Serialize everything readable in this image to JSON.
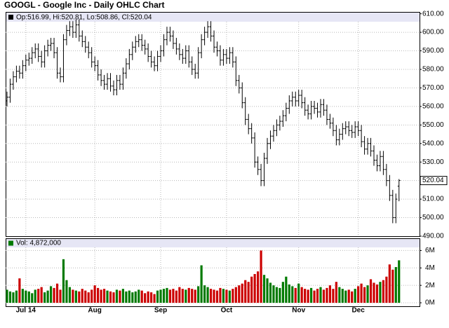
{
  "chart_data": {
    "type": "ohlc",
    "title": "GOOGL - Google Inc - Daily OHLC Chart",
    "legend": "Op:516.99, Hi:520.81, Lo:508.86, Cl:520.04",
    "color": "#000000",
    "grid": true,
    "show_last": true,
    "categories": [
      null,
      null,
      null,
      null,
      null,
      null,
      "Jul 14",
      null,
      null,
      null,
      null,
      null,
      null,
      null,
      null,
      null,
      null,
      null,
      null,
      null,
      null,
      null,
      null,
      null,
      null,
      null,
      null,
      null,
      "Aug",
      null,
      null,
      null,
      null,
      null,
      null,
      null,
      null,
      null,
      null,
      null,
      null,
      null,
      null,
      null,
      null,
      null,
      null,
      null,
      null,
      "Sep",
      null,
      null,
      null,
      null,
      null,
      null,
      null,
      null,
      null,
      null,
      null,
      null,
      null,
      null,
      null,
      null,
      null,
      null,
      null,
      null,
      "Oct",
      null,
      null,
      null,
      null,
      null,
      null,
      null,
      null,
      null,
      null,
      null,
      null,
      null,
      null,
      null,
      null,
      null,
      null,
      null,
      null,
      null,
      null,
      "Nov",
      null,
      null,
      null,
      null,
      null,
      null,
      null,
      null,
      null,
      null,
      null,
      null,
      null,
      null,
      null,
      null,
      null,
      null,
      "Dec",
      null,
      null,
      null,
      null,
      null,
      null,
      null,
      null,
      null,
      null,
      null,
      null,
      null
    ],
    "open": [
      563,
      565,
      572,
      576,
      579,
      578,
      582,
      585,
      586,
      589,
      591,
      587,
      584,
      590,
      593,
      594,
      589,
      578,
      576,
      596,
      601,
      603,
      600,
      604,
      598,
      595,
      592,
      589,
      584,
      582,
      577,
      574,
      572,
      575,
      571,
      569,
      574,
      572,
      578,
      583,
      588,
      592,
      595,
      596,
      593,
      591,
      587,
      584,
      582,
      587,
      590,
      596,
      600,
      598,
      594,
      591,
      588,
      586,
      590,
      584,
      580,
      578,
      589,
      596,
      600,
      603,
      598,
      592,
      590,
      585,
      588,
      586,
      589,
      584,
      574,
      570,
      562,
      553,
      548,
      543,
      530,
      526,
      520,
      532,
      540,
      544,
      547,
      550,
      552,
      555,
      559,
      563,
      565,
      563,
      566,
      562,
      558,
      556,
      560,
      559,
      557,
      561,
      558,
      553,
      551,
      547,
      542,
      545,
      548,
      549,
      547,
      546,
      549,
      547,
      541,
      537,
      540,
      536,
      531,
      528,
      533,
      526,
      520,
      512,
      500,
      516.99
    ],
    "high": [
      568,
      575,
      579,
      582,
      582,
      585,
      588,
      589,
      592,
      594,
      594,
      590,
      593,
      596,
      597,
      597,
      592,
      581,
      599,
      604,
      606,
      606,
      607,
      607,
      601,
      598,
      595,
      592,
      587,
      585,
      580,
      577,
      578,
      578,
      574,
      577,
      577,
      581,
      586,
      591,
      595,
      598,
      599,
      599,
      596,
      594,
      590,
      587,
      590,
      593,
      599,
      603,
      603,
      601,
      597,
      594,
      591,
      593,
      593,
      587,
      583,
      592,
      599,
      603,
      606,
      606,
      601,
      595,
      593,
      591,
      591,
      592,
      592,
      587,
      577,
      573,
      565,
      556,
      551,
      546,
      533,
      529,
      535,
      543,
      547,
      550,
      553,
      555,
      558,
      562,
      566,
      568,
      568,
      569,
      569,
      565,
      561,
      563,
      563,
      562,
      564,
      564,
      561,
      556,
      554,
      550,
      548,
      551,
      552,
      552,
      550,
      552,
      552,
      550,
      544,
      543,
      543,
      539,
      534,
      536,
      536,
      529,
      523,
      515,
      513,
      520.81
    ],
    "low": [
      560,
      562,
      569,
      573,
      575,
      575,
      579,
      582,
      583,
      586,
      584,
      581,
      581,
      587,
      590,
      586,
      575,
      573,
      573,
      593,
      598,
      597,
      597,
      595,
      592,
      589,
      586,
      581,
      579,
      574,
      571,
      569,
      569,
      568,
      566,
      566,
      569,
      569,
      575,
      580,
      585,
      589,
      592,
      590,
      588,
      584,
      581,
      579,
      579,
      584,
      587,
      593,
      595,
      591,
      588,
      585,
      583,
      583,
      581,
      577,
      575,
      575,
      586,
      593,
      597,
      595,
      589,
      587,
      582,
      582,
      583,
      583,
      581,
      571,
      567,
      559,
      550,
      545,
      540,
      527,
      523,
      517,
      517,
      529,
      537,
      541,
      544,
      547,
      549,
      552,
      556,
      560,
      560,
      560,
      559,
      555,
      553,
      553,
      556,
      554,
      554,
      555,
      550,
      548,
      544,
      539,
      539,
      542,
      545,
      544,
      543,
      543,
      544,
      538,
      534,
      534,
      533,
      528,
      525,
      525,
      523,
      517,
      509,
      497,
      497,
      508.86
    ],
    "close": [
      565,
      572,
      576,
      579,
      578,
      582,
      585,
      586,
      589,
      591,
      587,
      584,
      590,
      593,
      594,
      589,
      578,
      576,
      596,
      601,
      603,
      600,
      604,
      598,
      595,
      592,
      589,
      584,
      582,
      577,
      574,
      572,
      575,
      571,
      569,
      574,
      572,
      578,
      583,
      588,
      592,
      595,
      596,
      593,
      591,
      587,
      584,
      582,
      587,
      590,
      596,
      600,
      598,
      594,
      591,
      588,
      586,
      590,
      584,
      580,
      578,
      589,
      596,
      600,
      603,
      598,
      592,
      590,
      585,
      588,
      586,
      589,
      584,
      574,
      570,
      562,
      553,
      548,
      543,
      530,
      526,
      520,
      532,
      540,
      544,
      547,
      550,
      552,
      555,
      559,
      563,
      565,
      563,
      566,
      562,
      558,
      556,
      560,
      559,
      557,
      561,
      558,
      553,
      551,
      547,
      542,
      545,
      548,
      549,
      547,
      546,
      549,
      547,
      541,
      537,
      540,
      536,
      531,
      528,
      533,
      526,
      520,
      512,
      500,
      510,
      520.04
    ],
    "ylim": [
      490,
      611
    ],
    "yticks": [
      {
        "value": 490,
        "label": "490.00"
      },
      {
        "value": 500,
        "label": "500.00"
      },
      {
        "value": 510,
        "label": "510.00"
      },
      {
        "value": 520,
        "label": "520.00"
      },
      {
        "value": 530,
        "label": "530.00"
      },
      {
        "value": 540,
        "label": "540.00"
      },
      {
        "value": 550,
        "label": "550.00"
      },
      {
        "value": 560,
        "label": "560.00"
      },
      {
        "value": 570,
        "label": "570.00"
      },
      {
        "value": 580,
        "label": "580.00"
      },
      {
        "value": 590,
        "label": "590.00"
      },
      {
        "value": 600,
        "label": "600.00"
      },
      {
        "value": 610,
        "label": "610.00"
      }
    ],
    "volume": {
      "legend": "Vol: 4,872,000",
      "up_color": "#007a00",
      "down_color": "#cc0000",
      "values": [
        1.5,
        1.3,
        1.2,
        1.4,
        2.8,
        1.6,
        1.4,
        1.3,
        1.1,
        1.5,
        1.6,
        1.8,
        1.2,
        1.4,
        1.9,
        1.7,
        2.2,
        1.5,
        5.0,
        2.6,
        1.8,
        1.5,
        1.4,
        1.3,
        1.6,
        1.4,
        1.2,
        1.5,
        2.0,
        1.7,
        1.5,
        1.6,
        1.4,
        1.3,
        1.2,
        1.5,
        1.4,
        1.6,
        1.3,
        1.4,
        1.2,
        1.3,
        1.5,
        1.4,
        1.1,
        1.3,
        1.2,
        1.0,
        1.4,
        1.5,
        1.6,
        1.7,
        1.5,
        1.6,
        1.4,
        1.8,
        1.6,
        1.5,
        1.7,
        1.6,
        1.5,
        1.9,
        4.3,
        2.0,
        1.8,
        1.6,
        1.5,
        1.4,
        1.7,
        1.6,
        1.5,
        1.4,
        1.6,
        1.8,
        2.0,
        2.2,
        2.6,
        2.4,
        3.0,
        3.3,
        3.6,
        6.0,
        3.2,
        2.8,
        2.3,
        2.0,
        1.8,
        1.7,
        2.4,
        3.0,
        2.1,
        1.9,
        1.7,
        2.2,
        1.8,
        1.6,
        1.5,
        1.7,
        1.4,
        1.6,
        1.8,
        1.5,
        1.7,
        2.0,
        1.6,
        2.4,
        1.8,
        1.6,
        1.4,
        1.5,
        1.3,
        1.6,
        1.9,
        2.2,
        1.8,
        2.0,
        2.7,
        2.3,
        2.1,
        2.4,
        2.6,
        3.0,
        4.4,
        3.8,
        4.1,
        4.872
      ],
      "ylim": [
        -0.4,
        7.4
      ],
      "yticks": [
        {
          "value": 0,
          "label": "0M"
        },
        {
          "value": 2,
          "label": "2M"
        },
        {
          "value": 4,
          "label": "4M"
        },
        {
          "value": 6,
          "label": "6M"
        }
      ]
    }
  }
}
